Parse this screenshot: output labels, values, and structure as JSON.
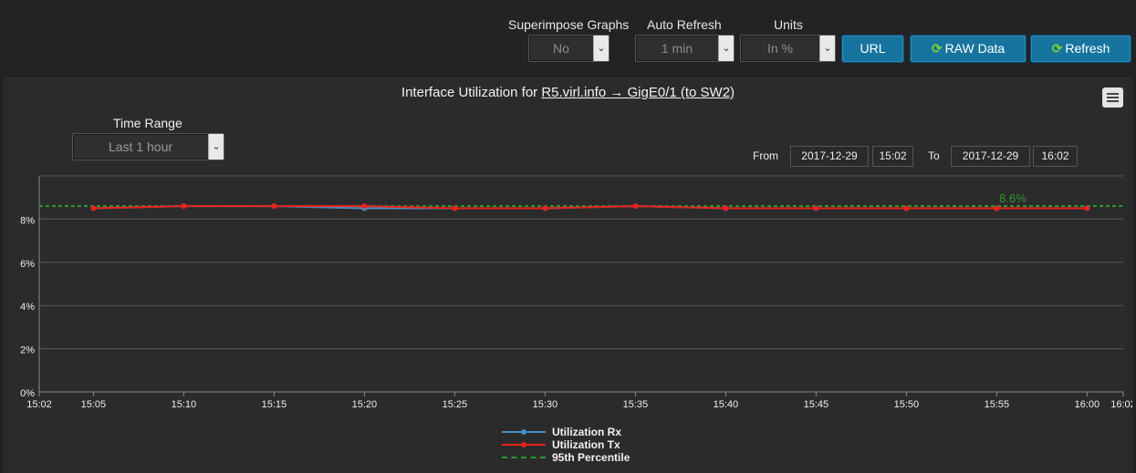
{
  "controls": {
    "superimpose": {
      "label": "Superimpose Graphs",
      "value": "No"
    },
    "auto_refresh": {
      "label": "Auto Refresh",
      "value": "1 min"
    },
    "units": {
      "label": "Units",
      "value": "In %"
    },
    "url_button": "URL",
    "raw_button": "RAW Data",
    "refresh_button": "Refresh"
  },
  "panel": {
    "title_prefix": "Interface Utilization for ",
    "title_link": "R5.virl.info → GigE0/1 (to SW2)",
    "time_range_label": "Time Range",
    "time_range_value": "Last 1 hour",
    "from_label": "From",
    "from_date": "2017-12-29",
    "from_time": "15:02",
    "to_label": "To",
    "to_date": "2017-12-29",
    "to_time": "16:02"
  },
  "colors": {
    "rx": "#4a90c4",
    "tx": "#e8221d",
    "percentile": "#2e9a2e",
    "button": "#17749f",
    "refresh_icon": "#7bd12e"
  },
  "icons": [
    "chevron-down-icon",
    "refresh-icon",
    "hamburger-menu-icon"
  ],
  "chart_data": {
    "type": "line",
    "x": [
      "15:05",
      "15:10",
      "15:15",
      "15:20",
      "15:25",
      "15:30",
      "15:35",
      "15:40",
      "15:45",
      "15:50",
      "15:55",
      "16:00"
    ],
    "x_ticks": [
      "15:02",
      "15:05",
      "15:10",
      "15:15",
      "15:20",
      "15:25",
      "15:30",
      "15:35",
      "15:40",
      "15:45",
      "15:50",
      "15:55",
      "16:00",
      "16:02"
    ],
    "y_ticks": [
      "0%",
      "2%",
      "4%",
      "6%",
      "8%"
    ],
    "ylim": [
      0,
      10
    ],
    "series": [
      {
        "name": "Utilization Rx",
        "values": [
          8.5,
          8.6,
          8.6,
          8.5,
          8.5,
          8.5,
          8.6,
          8.5,
          8.5,
          8.5,
          8.5,
          8.5
        ]
      },
      {
        "name": "Utilization Tx",
        "values": [
          8.5,
          8.6,
          8.6,
          8.6,
          8.5,
          8.5,
          8.6,
          8.5,
          8.5,
          8.5,
          8.5,
          8.5
        ]
      }
    ],
    "percentile": {
      "name": "95th Percentile",
      "value": 8.6,
      "label": "8.6%"
    },
    "grid": true,
    "legend": "bottom-center"
  }
}
